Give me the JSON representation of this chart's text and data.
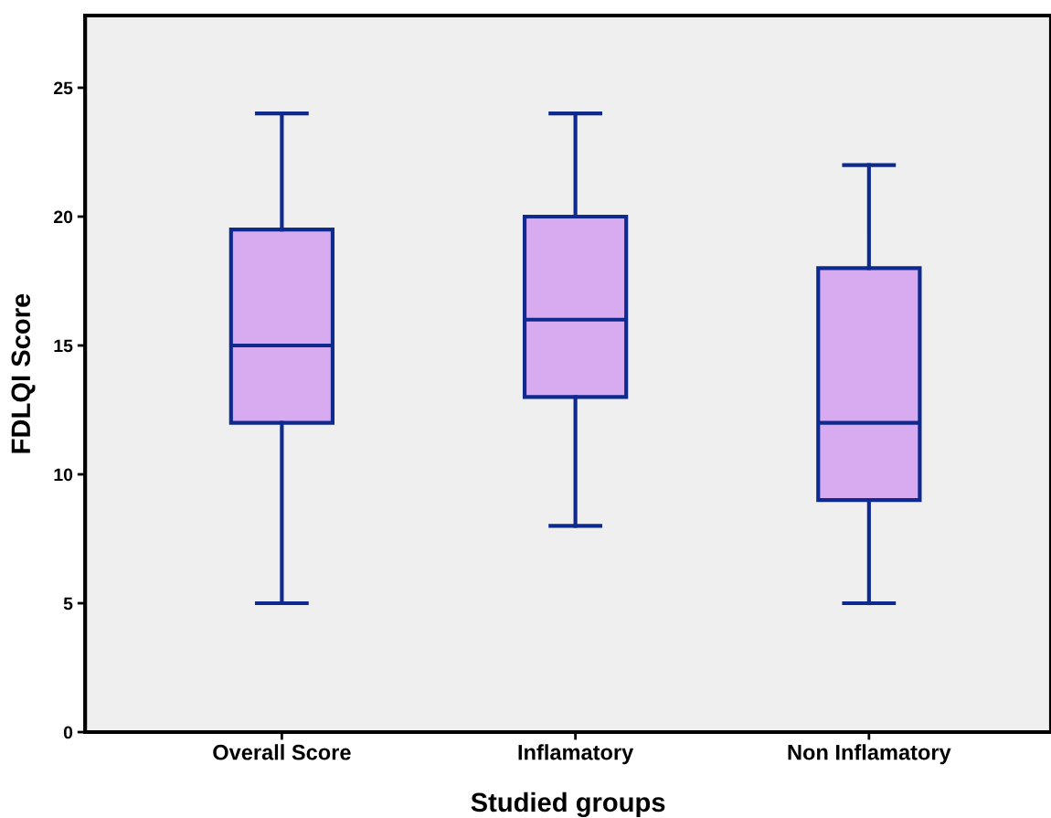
{
  "chart_data": {
    "type": "box",
    "xlabel": "Studied groups",
    "ylabel": "FDLQI Score",
    "categories": [
      "Overall Score",
      "Inflamatory",
      "Non Inflamatory"
    ],
    "boxes": [
      {
        "low": 5,
        "q1": 12,
        "median": 15,
        "q3": 19.5,
        "high": 24
      },
      {
        "low": 8,
        "q1": 13,
        "median": 16,
        "q3": 20,
        "high": 24
      },
      {
        "low": 5,
        "q1": 9,
        "median": 12,
        "q3": 18,
        "high": 22
      }
    ],
    "color": "#d8aaf0",
    "ylim": [
      0,
      27.8
    ],
    "yticks": [
      0,
      5,
      10,
      15,
      20,
      25
    ],
    "grid": false,
    "legend": false
  }
}
